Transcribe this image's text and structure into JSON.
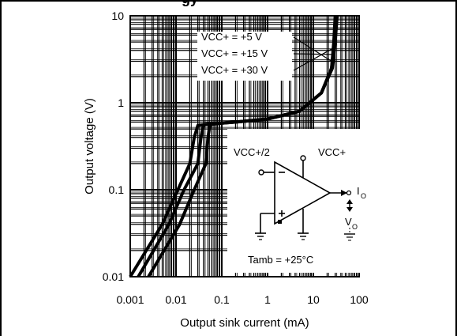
{
  "header": {
    "title_fragment": "gy"
  },
  "chart_data": {
    "type": "line",
    "xscale": "log",
    "yscale": "log",
    "xlim": [
      0.001,
      100
    ],
    "ylim": [
      0.01,
      10
    ],
    "xlabel": "Output sink current (mA)",
    "ylabel": "Output voltage (V)",
    "x_ticks": [
      "0.001",
      "0.01",
      "0.1",
      "1",
      "10",
      "100"
    ],
    "y_ticks": [
      "0.01",
      "0.1",
      "1",
      "10"
    ],
    "grid": true,
    "series": [
      {
        "name": "VCC+ = +5 V",
        "points": [
          [
            0.001,
            0.01
          ],
          [
            0.005,
            0.04
          ],
          [
            0.011,
            0.1
          ],
          [
            0.02,
            0.2
          ],
          [
            0.025,
            0.4
          ],
          [
            0.03,
            0.55
          ],
          [
            0.06,
            0.57
          ],
          [
            0.2,
            0.6
          ],
          [
            1,
            0.65
          ],
          [
            5,
            0.8
          ],
          [
            15,
            1.3
          ],
          [
            25,
            2.5
          ],
          [
            28,
            5
          ],
          [
            30,
            10
          ]
        ]
      },
      {
        "name": "VCC+ = +15 V",
        "points": [
          [
            0.0015,
            0.01
          ],
          [
            0.007,
            0.04
          ],
          [
            0.015,
            0.1
          ],
          [
            0.03,
            0.2
          ],
          [
            0.035,
            0.4
          ],
          [
            0.04,
            0.56
          ],
          [
            0.07,
            0.58
          ],
          [
            0.2,
            0.6
          ],
          [
            1,
            0.65
          ],
          [
            5,
            0.8
          ],
          [
            15,
            1.3
          ],
          [
            25,
            2.5
          ],
          [
            29,
            5
          ],
          [
            31,
            10
          ]
        ]
      },
      {
        "name": "VCC+ = +30 V",
        "points": [
          [
            0.0025,
            0.01
          ],
          [
            0.012,
            0.04
          ],
          [
            0.025,
            0.1
          ],
          [
            0.045,
            0.2
          ],
          [
            0.05,
            0.4
          ],
          [
            0.055,
            0.56
          ],
          [
            0.09,
            0.58
          ],
          [
            0.2,
            0.6
          ],
          [
            1,
            0.65
          ],
          [
            5,
            0.8
          ],
          [
            15,
            1.3
          ],
          [
            26,
            2.5
          ],
          [
            30,
            5
          ],
          [
            33,
            10
          ]
        ]
      }
    ],
    "annotations": {
      "tamb": "Tamb = +25°C",
      "vcc_half": "VCC+/2",
      "vcc": "VCC+",
      "io": "I",
      "io_sub": "O",
      "vo": "V",
      "vo_sub": "O"
    }
  }
}
